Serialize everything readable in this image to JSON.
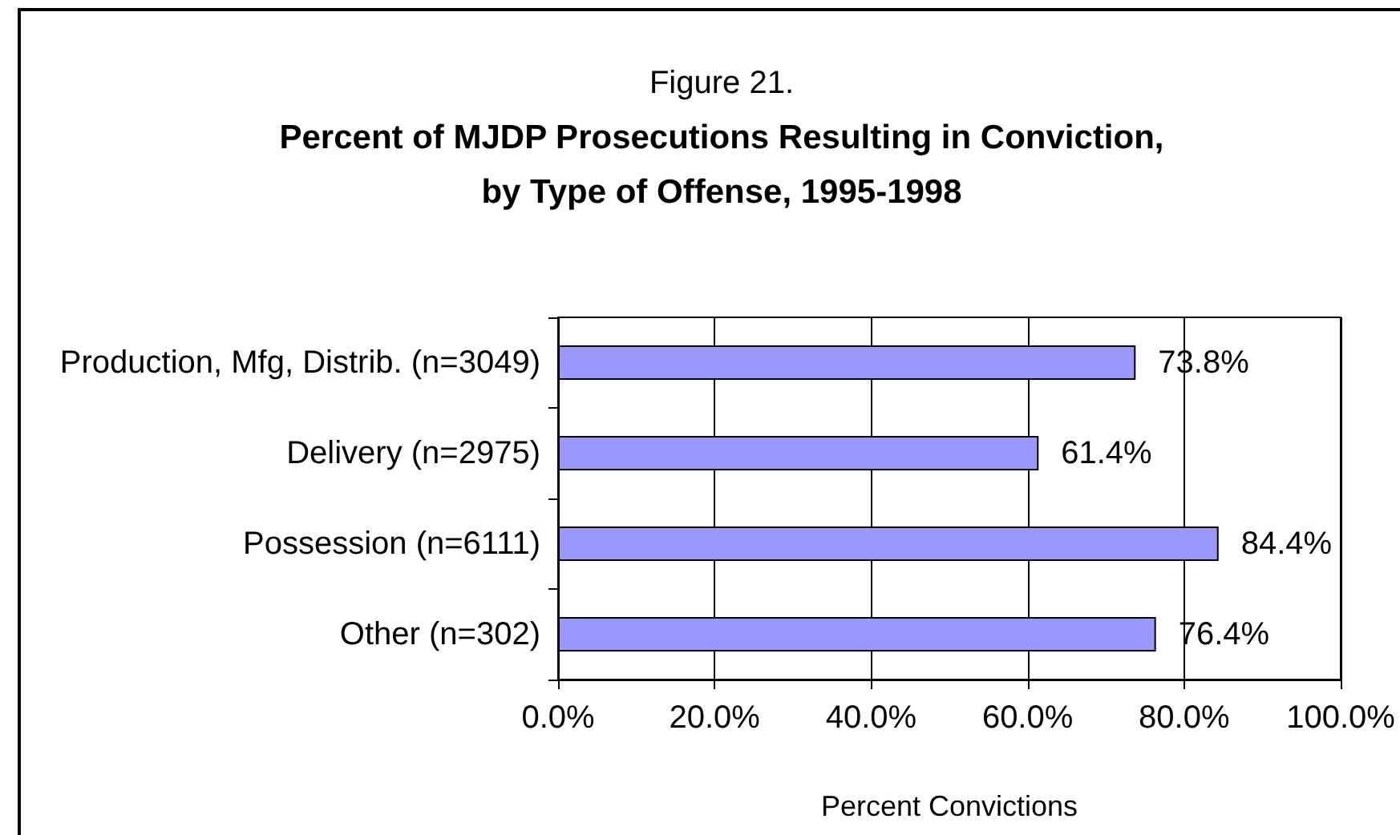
{
  "chart_data": {
    "type": "bar",
    "orientation": "horizontal",
    "subtitle": "Figure 21.",
    "title": "Percent of MJDP Prosecutions Resulting in Conviction,\nby Type of Offense, 1995-1998",
    "xlabel": "Percent Convictions",
    "categories": [
      "Production, Mfg, Distrib. (n=3049)",
      "Delivery (n=2975)",
      "Possession (n=6111)",
      "Other (n=302)"
    ],
    "values": [
      73.8,
      61.4,
      84.4,
      76.4
    ],
    "value_labels": [
      "73.8%",
      "61.4%",
      "84.4%",
      "76.4%"
    ],
    "color": "#9999ff",
    "xlim": [
      0,
      100
    ],
    "xticks": [
      {
        "value": 0,
        "label": "0.0%"
      },
      {
        "value": 20,
        "label": "20.0%"
      },
      {
        "value": 40,
        "label": "40.0%"
      },
      {
        "value": 60,
        "label": "60.0%"
      },
      {
        "value": 80,
        "label": "80.0%"
      },
      {
        "value": 100,
        "label": "100.0%"
      }
    ],
    "grid": "x"
  }
}
